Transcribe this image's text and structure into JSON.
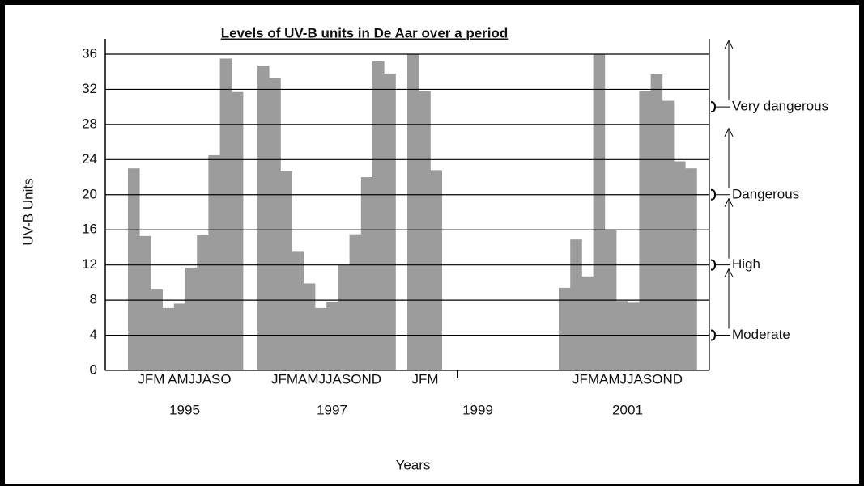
{
  "chart_data": {
    "type": "bar",
    "title": "Levels of UV-B units in De Aar over a period",
    "y_label": "UV-B Units",
    "x_label": "Years",
    "ylim": [
      0,
      36
    ],
    "yticks": [
      0,
      4,
      8,
      12,
      16,
      20,
      24,
      28,
      32,
      36
    ],
    "grid": true,
    "color": "#9c9c9c",
    "groups": [
      {
        "year": "1995",
        "months": "JFM AMJJASO",
        "values": [
          23,
          15.3,
          9.2,
          7.1,
          7.6,
          11.7,
          15.4,
          24.5,
          35.5,
          31.7
        ]
      },
      {
        "year": "1997",
        "months": "JFMAMJJASOND",
        "values": [
          34.7,
          33.3,
          22.7,
          13.5,
          9.9,
          7.1,
          7.8,
          12,
          15.5,
          22,
          35.2,
          33.8
        ]
      },
      {
        "year": "1999",
        "months": "JFM",
        "values": [
          36,
          31.8,
          22.8
        ]
      },
      {
        "year": "2001",
        "months": "JFMAMJJASOND",
        "values": [
          9.4,
          14.9,
          10.7,
          36,
          16,
          7.9,
          7.7,
          31.8,
          33.7,
          30.7,
          23.8,
          23
        ]
      }
    ],
    "annotations": [
      {
        "text": "Moderate",
        "level": 4
      },
      {
        "text": "High",
        "level": 12
      },
      {
        "text": "Dangerous",
        "level": 20
      },
      {
        "text": "Very dangerous",
        "level": 30
      }
    ]
  }
}
